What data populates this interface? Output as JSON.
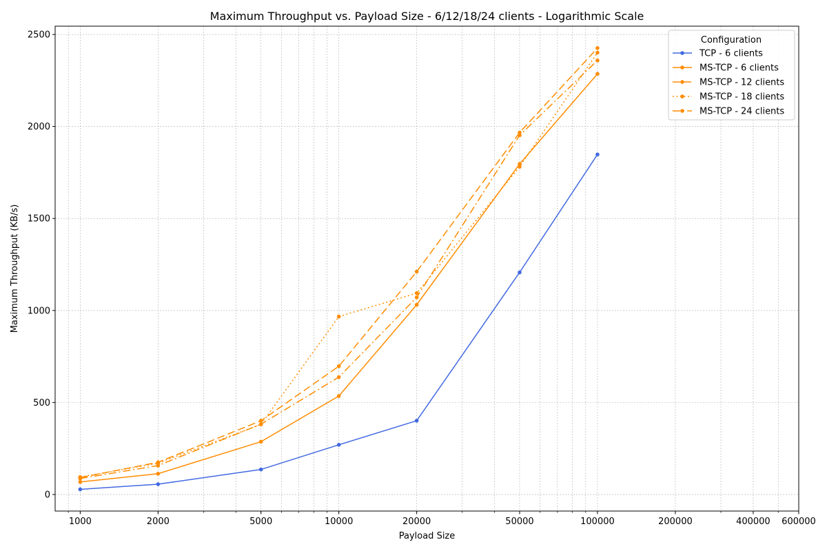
{
  "chart_data": {
    "type": "line",
    "title": "Maximum Throughput vs. Payload Size - 6/12/18/24 clients - Logarithmic Scale",
    "xlabel": "Payload Size",
    "ylabel": "Maximum Throughput (KB/s)",
    "x_scale": "log",
    "xlim": [
      800,
      600000
    ],
    "ylim": [
      -90,
      2545
    ],
    "grid": true,
    "x_ticks": [
      {
        "value": 1000,
        "label": "1000"
      },
      {
        "value": 2000,
        "label": "2000"
      },
      {
        "value": 5000,
        "label": "5000"
      },
      {
        "value": 10000,
        "label": "10000"
      },
      {
        "value": 20000,
        "label": "20000"
      },
      {
        "value": 50000,
        "label": "50000"
      },
      {
        "value": 100000,
        "label": "100000"
      },
      {
        "value": 200000,
        "label": "200000"
      },
      {
        "value": 400000,
        "label": "400000"
      },
      {
        "value": 600000,
        "label": "600000"
      }
    ],
    "y_ticks": [
      {
        "value": 0,
        "label": "0"
      },
      {
        "value": 500,
        "label": "500"
      },
      {
        "value": 1000,
        "label": "1000"
      },
      {
        "value": 1500,
        "label": "1500"
      },
      {
        "value": 2000,
        "label": "2000"
      },
      {
        "value": 2500,
        "label": "2500"
      }
    ],
    "legend": {
      "title": "Configuration",
      "placement": "top-right"
    },
    "x": [
      1000,
      2000,
      5000,
      10000,
      20000,
      50000,
      100000
    ],
    "series": [
      {
        "name": "TCP - 6 clients",
        "color": "#4169e1",
        "dash": "solid",
        "values": [
          28,
          56,
          136,
          270,
          401,
          1207,
          1848
        ]
      },
      {
        "name": "MS-TCP - 6 clients",
        "color": "#ff8c00",
        "dash": "solid",
        "values": [
          68,
          113,
          287,
          535,
          1031,
          1796,
          2286
        ]
      },
      {
        "name": "MS-TCP - 12 clients",
        "color": "#ff8c00",
        "dash": "dashed",
        "values": [
          92,
          175,
          401,
          697,
          1211,
          1967,
          2426
        ]
      },
      {
        "name": "MS-TCP - 18 clients",
        "color": "#ff8c00",
        "dash": "dotted",
        "values": [
          95,
          170,
          381,
          967,
          1094,
          1781,
          2401
        ]
      },
      {
        "name": "MS-TCP - 24 clients",
        "color": "#ff8c00",
        "dash": "dashdot",
        "values": [
          87,
          157,
          382,
          638,
          1071,
          1952,
          2359
        ]
      }
    ]
  }
}
